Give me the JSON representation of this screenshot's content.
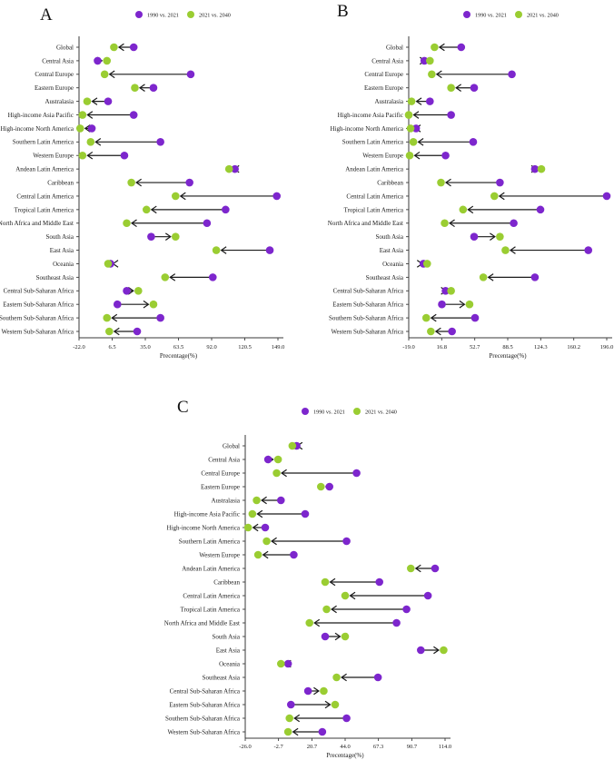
{
  "figure": {
    "background_color": "#ffffff",
    "text_color": "#1a1a1a",
    "accent_colors": {
      "series_1990_2021": "#7D26CD",
      "series_2021_2040": "#9ACD32"
    }
  },
  "chart_data": [
    {
      "type": "dumbbell",
      "panel_label": "A",
      "xlabel": "Precentage(%)",
      "xlim": [
        -22.0,
        149.0
      ],
      "xticks": [
        "-22.0",
        "6.5",
        "35.0",
        "63.5",
        "92.0",
        "120.5",
        "149.0"
      ],
      "grid": false,
      "legend_position": "top",
      "arrow_direction": "from 1990 vs. 2021 toward 2021 vs. 2040",
      "categories": [
        "Global",
        "Central Asia",
        "Central Europe",
        "Eastern Europe",
        "Australasia",
        "High-income Asia Pacific",
        "High-income North America",
        "Southern Latin America",
        "Western Europe",
        "Andean Latin America",
        "Caribbean",
        "Central Latin America",
        "Tropical Latin America",
        "North Africa and Middle East",
        "South Asia",
        "East Asia",
        "Oceania",
        "Southeast Asia",
        "Central Sub-Saharan Africa",
        "Eastern Sub-Saharan Africa",
        "Southern Sub-Saharan Africa",
        "Western Sub-Saharan Africa"
      ],
      "series": [
        {
          "name": "1990 vs. 2021",
          "color": "#7D26CD",
          "values": [
            25,
            -6,
            74,
            42,
            3,
            25,
            -11,
            48,
            17,
            112,
            73,
            148,
            104,
            88,
            40,
            142,
            5,
            93,
            19,
            11,
            48,
            28
          ]
        },
        {
          "name": "2021 vs. 2040",
          "color": "#9ACD32",
          "values": [
            8,
            2,
            0,
            26,
            -15,
            -19,
            -21,
            -12,
            -19,
            107,
            23,
            61,
            36,
            19,
            61,
            96,
            3,
            52,
            29,
            42,
            2,
            4
          ]
        }
      ]
    },
    {
      "type": "dumbbell",
      "panel_label": "B",
      "xlabel": "Precentage(%)",
      "xlim": [
        -19.0,
        196.0
      ],
      "xticks": [
        "-19.0",
        "16.8",
        "52.7",
        "88.5",
        "124.3",
        "160.2",
        "196.0"
      ],
      "grid": false,
      "legend_position": "top",
      "arrow_direction": "from 1990 vs. 2021 toward 2021 vs. 2040",
      "categories": [
        "Global",
        "Central Asia",
        "Central Europe",
        "Eastern Europe",
        "Australasia",
        "High-income Asia Pacific",
        "High-income North America",
        "Southern Latin America",
        "Western Europe",
        "Andean Latin America",
        "Caribbean",
        "Central Latin America",
        "Tropical Latin America",
        "North Africa and Middle East",
        "South Asia",
        "East Asia",
        "Oceania",
        "Southeast Asia",
        "Central Sub-Saharan Africa",
        "Eastern Sub-Saharan Africa",
        "Southern Sub-Saharan Africa",
        "Western Sub-Saharan Africa"
      ],
      "series": [
        {
          "name": "1990 vs. 2021",
          "color": "#7D26CD",
          "values": [
            38,
            -2,
            93,
            52,
            4,
            27,
            -11,
            51,
            21,
            118,
            80,
            196,
            124,
            95,
            52,
            176,
            -3,
            118,
            21,
            17,
            53,
            28
          ]
        },
        {
          "name": "2021 vs. 2040",
          "color": "#9ACD32",
          "values": [
            9,
            4,
            6,
            27,
            -16,
            -19,
            -17,
            -14,
            -18,
            125,
            16,
            74,
            40,
            20,
            80,
            86,
            1,
            62,
            27,
            47,
            0,
            5
          ]
        }
      ]
    },
    {
      "type": "dumbbell",
      "panel_label": "C",
      "xlabel": "Precentage(%)",
      "xlim": [
        -26.0,
        114.0
      ],
      "xticks": [
        "-26.0",
        "-2.7",
        "20.7",
        "44.0",
        "67.3",
        "90.7",
        "114.0"
      ],
      "grid": false,
      "legend_position": "top",
      "arrow_direction": "from 1990 vs. 2021 toward 2021 vs. 2040",
      "categories": [
        "Global",
        "Central Asia",
        "Central Europe",
        "Eastern Europe",
        "Australasia",
        "High-income Asia Pacific",
        "High-income North America",
        "Southern Latin America",
        "Western Europe",
        "Andean Latin America",
        "Caribbean",
        "Central Latin America",
        "Tropical Latin America",
        "North Africa and Middle East",
        "South Asia",
        "East Asia",
        "Oceania",
        "Southeast Asia",
        "Central Sub-Saharan Africa",
        "Eastern Sub-Saharan Africa",
        "Southern Sub-Saharan Africa",
        "Western Sub-Saharan Africa"
      ],
      "series": [
        {
          "name": "1990 vs. 2021",
          "color": "#7D26CD",
          "values": [
            10,
            -10,
            52,
            33,
            -1,
            16,
            -12,
            45,
            8,
            107,
            68,
            102,
            87,
            80,
            30,
            97,
            4,
            67,
            18,
            6,
            45,
            28
          ]
        },
        {
          "name": "2021 vs. 2040",
          "color": "#9ACD32",
          "values": [
            7,
            -3,
            -4,
            27,
            -18,
            -21,
            -24,
            -11,
            -17,
            90,
            30,
            44,
            31,
            19,
            44,
            113,
            -1,
            38,
            29,
            37,
            5,
            4
          ]
        }
      ]
    }
  ]
}
